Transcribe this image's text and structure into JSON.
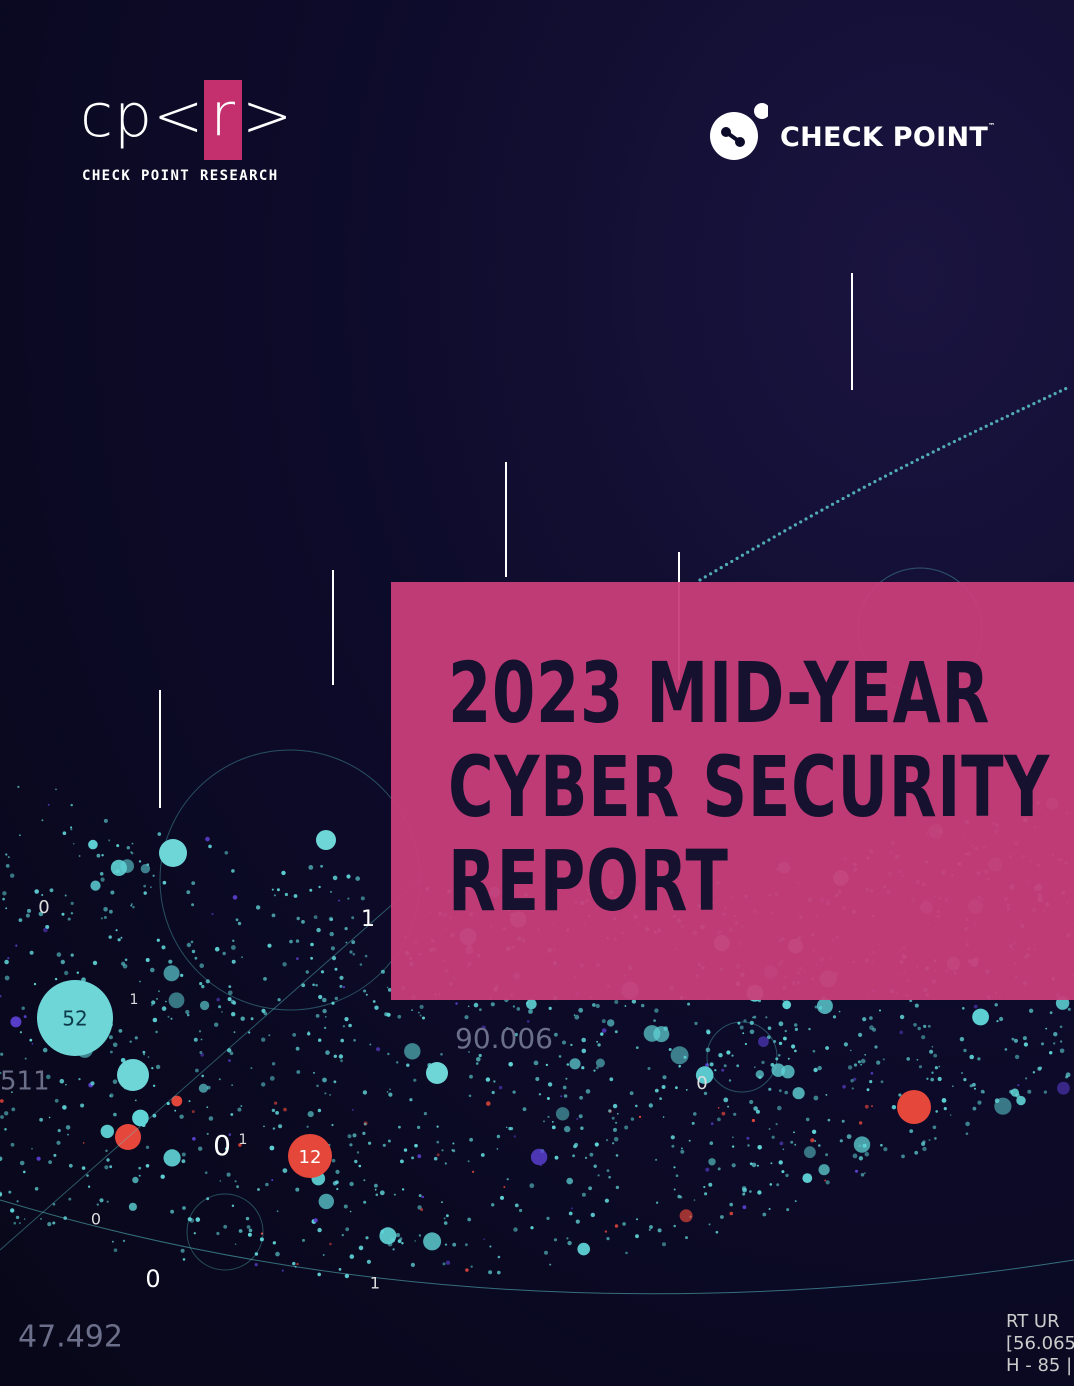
{
  "logo": {
    "mark": {
      "prefix": "cp<",
      "highlight": "r",
      "suffix": ">"
    },
    "caption": "CHECK POINT RESEARCH"
  },
  "brand": {
    "name": "CHECK POINT",
    "trademark": "™"
  },
  "title": {
    "lines": [
      "2023 MID-YEAR",
      "CYBER SECURITY",
      "REPORT"
    ]
  },
  "background_text": [
    "52",
    "12",
    "0",
    "0",
    "0",
    "0",
    "0",
    "1",
    "1",
    "1",
    "1",
    "90.006",
    "47.492",
    "511",
    "RT UR",
    "[56.065",
    "H - 85 |"
  ]
}
